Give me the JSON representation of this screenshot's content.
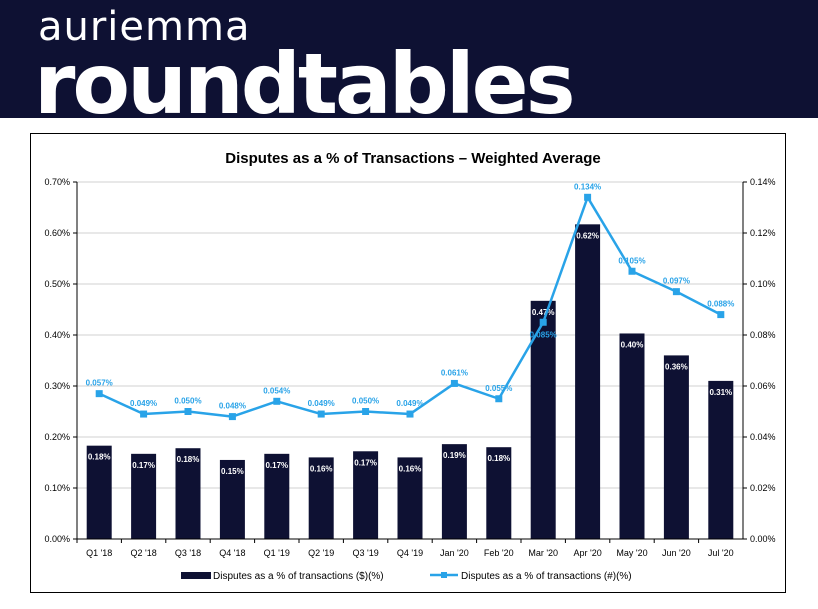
{
  "header": {
    "brand_small": "auriemma",
    "brand_large": "roundtables",
    "background_color": "#0e1133"
  },
  "chart_data": {
    "type": "bar",
    "title": "Disputes as a % of Transactions – Weighted Average",
    "categories": [
      "Q1 '18",
      "Q2 '18",
      "Q3 '18",
      "Q4 '18",
      "Q1 '19",
      "Q2 '19",
      "Q3 '19",
      "Q4 '19",
      "Jan '20",
      "Feb '20",
      "Mar '20",
      "Apr '20",
      "May '20",
      "Jun '20",
      "Jul '20"
    ],
    "bar_series": {
      "name": "Disputes as a % of transactions ($)(%)",
      "color": "#0e1133",
      "values": [
        0.183,
        0.167,
        0.178,
        0.155,
        0.167,
        0.16,
        0.172,
        0.16,
        0.186,
        0.18,
        0.467,
        0.617,
        0.403,
        0.36,
        0.31
      ],
      "labels": [
        "0.18%",
        "0.17%",
        "0.18%",
        "0.15%",
        "0.17%",
        "0.16%",
        "0.17%",
        "0.16%",
        "0.19%",
        "0.18%",
        "0.47%",
        "0.62%",
        "0.40%",
        "0.36%",
        "0.31%"
      ],
      "axis": "left"
    },
    "line_series": {
      "name": "Disputes as a % of transactions (#)(%)",
      "color": "#29a3e8",
      "values": [
        0.057,
        0.049,
        0.05,
        0.048,
        0.054,
        0.049,
        0.05,
        0.049,
        0.061,
        0.055,
        0.085,
        0.134,
        0.105,
        0.097,
        0.088
      ],
      "labels": [
        "0.057%",
        "0.049%",
        "0.050%",
        "0.048%",
        "0.054%",
        "0.049%",
        "0.050%",
        "0.049%",
        "0.061%",
        "0.055%",
        "0.085%",
        "0.134%",
        "0.105%",
        "0.097%",
        "0.088%"
      ],
      "axis": "right"
    },
    "left_axis": {
      "ylim": [
        0,
        0.7
      ],
      "ticks": [
        "0.00%",
        "0.10%",
        "0.20%",
        "0.30%",
        "0.40%",
        "0.50%",
        "0.60%",
        "0.70%"
      ]
    },
    "right_axis": {
      "ylim": [
        0,
        0.14
      ],
      "ticks": [
        "0.00%",
        "0.02%",
        "0.04%",
        "0.06%",
        "0.08%",
        "0.10%",
        "0.12%",
        "0.14%"
      ]
    },
    "grid": true,
    "legend_position": "bottom"
  }
}
